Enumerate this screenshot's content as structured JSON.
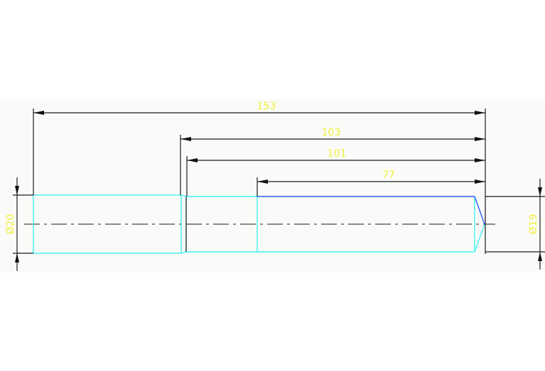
{
  "drawing": {
    "dimensions": {
      "overall_length": "153",
      "length_103": "103",
      "length_101": "101",
      "length_77": "77",
      "diameter_left": "Ø20",
      "diameter_right": "Ø19"
    },
    "colors": {
      "background": "#fafbf8",
      "part_outline": "#3ff0f0",
      "selected_edge": "#2a5cff",
      "dimension_line": "#1a1a1a",
      "dimension_text": "#f2f03a"
    }
  }
}
